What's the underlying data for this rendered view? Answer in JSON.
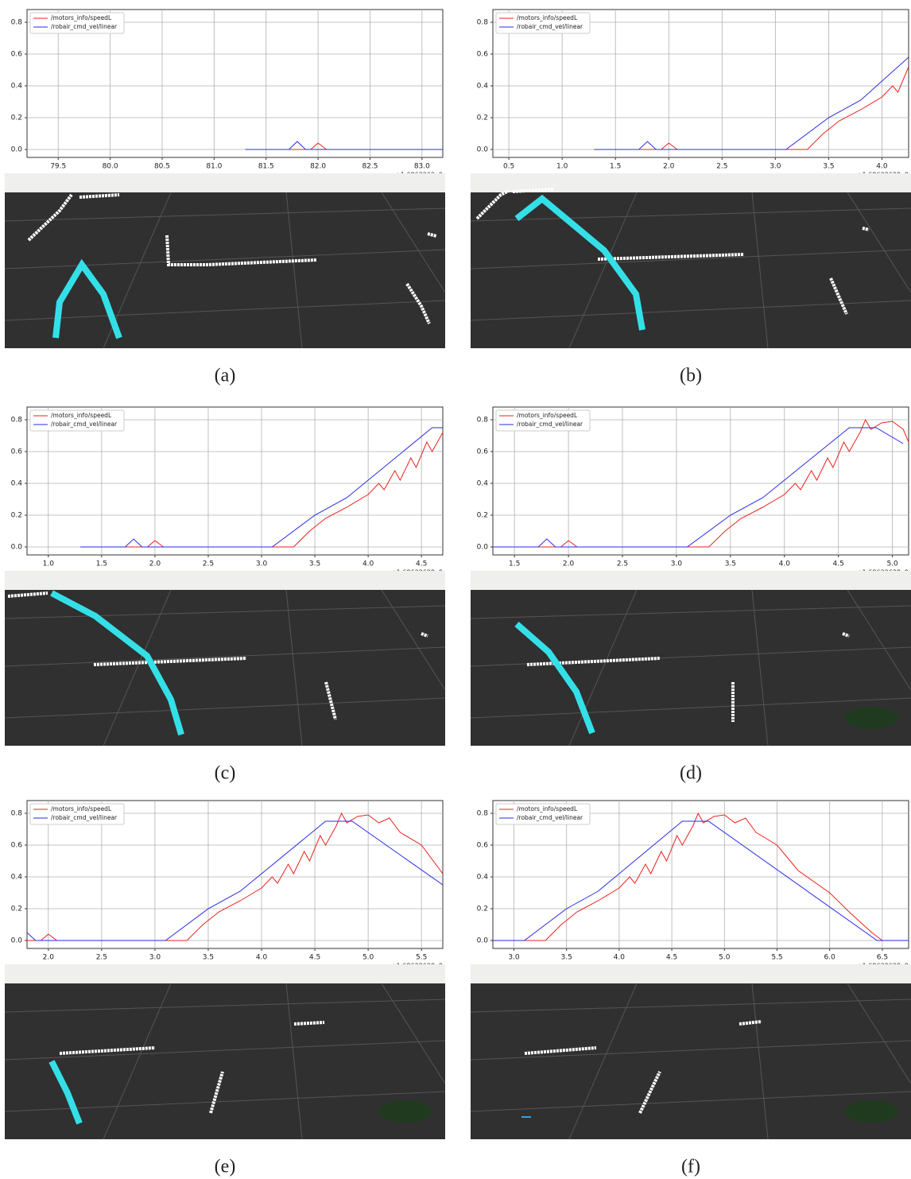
{
  "chart_data": [
    {
      "type": "line",
      "caption": "(a)",
      "x_offset_label": "+1.6863262e9",
      "grid": true,
      "legend": "upper left",
      "xlim": [
        79.2,
        83.2
      ],
      "xticks": [
        79.5,
        {
          "value": 80,
          "label": "80.0"
        },
        80.5,
        {
          "value": 81,
          "label": "81.0"
        },
        81.5,
        {
          "value": 82,
          "label": "82.0"
        },
        82.5,
        {
          "value": 83,
          "label": "83.0"
        }
      ],
      "ylim": [
        -0.05,
        0.88
      ],
      "yticks": [
        {
          "value": 0,
          "label": "0.0"
        },
        0.2,
        0.4,
        0.6,
        0.8
      ],
      "series": [
        {
          "name": "/motors_info/speedL",
          "color": "#e8231f",
          "x": [
            81.3,
            81.93,
            82.0,
            82.08,
            83.2
          ],
          "values": [
            0,
            0,
            0.04,
            0,
            0
          ]
        },
        {
          "name": "/robair_cmd_vel/linear",
          "color": "#2a2ae8",
          "x": [
            81.3,
            81.72,
            81.8,
            81.88,
            83.2
          ],
          "values": [
            0,
            0,
            0.05,
            0,
            0
          ]
        }
      ]
    },
    {
      "type": "line",
      "caption": "(b)",
      "x_offset_label": "+1.68632628e9",
      "grid": true,
      "legend": "upper left",
      "xlim": [
        0.35,
        4.25
      ],
      "xticks": [
        0.5,
        {
          "value": 1,
          "label": "1.0"
        },
        1.5,
        {
          "value": 2,
          "label": "2.0"
        },
        2.5,
        {
          "value": 3,
          "label": "3.0"
        },
        3.5,
        {
          "value": 4,
          "label": "4.0"
        }
      ],
      "ylim": [
        -0.05,
        0.88
      ],
      "yticks": [
        {
          "value": 0,
          "label": "0.0"
        },
        0.2,
        0.4,
        0.6,
        0.8
      ],
      "series": [
        {
          "name": "/motors_info/speedL",
          "color": "#e8231f",
          "x": [
            1.3,
            1.93,
            2.0,
            2.08,
            3.3,
            3.45,
            3.6,
            3.8,
            4.0,
            4.1,
            4.15,
            4.25
          ],
          "values": [
            0,
            0,
            0.04,
            0,
            0,
            0.1,
            0.18,
            0.25,
            0.33,
            0.4,
            0.36,
            0.52
          ]
        },
        {
          "name": "/robair_cmd_vel/linear",
          "color": "#2a2ae8",
          "x": [
            1.3,
            1.72,
            1.8,
            1.88,
            3.1,
            3.5,
            3.8,
            4.25
          ],
          "values": [
            0,
            0,
            0.05,
            0,
            0,
            0.2,
            0.31,
            0.58
          ]
        }
      ]
    },
    {
      "type": "line",
      "caption": "(c)",
      "x_offset_label": "+1.68632628e9",
      "grid": true,
      "legend": "upper left",
      "xlim": [
        0.8,
        4.7
      ],
      "xticks": [
        {
          "value": 1,
          "label": "1.0"
        },
        1.5,
        {
          "value": 2,
          "label": "2.0"
        },
        2.5,
        {
          "value": 3,
          "label": "3.0"
        },
        3.5,
        {
          "value": 4,
          "label": "4.0"
        },
        4.5
      ],
      "ylim": [
        -0.05,
        0.88
      ],
      "yticks": [
        {
          "value": 0,
          "label": "0.0"
        },
        0.2,
        0.4,
        0.6,
        0.8
      ],
      "series": [
        {
          "name": "/motors_info/speedL",
          "color": "#e8231f",
          "x": [
            1.3,
            1.93,
            2.0,
            2.08,
            3.3,
            3.45,
            3.6,
            3.8,
            4.0,
            4.1,
            4.15,
            4.25,
            4.3,
            4.4,
            4.45,
            4.55,
            4.6,
            4.7
          ],
          "values": [
            0,
            0,
            0.04,
            0,
            0,
            0.1,
            0.18,
            0.25,
            0.33,
            0.4,
            0.36,
            0.48,
            0.42,
            0.56,
            0.5,
            0.66,
            0.6,
            0.72
          ]
        },
        {
          "name": "/robair_cmd_vel/linear",
          "color": "#2a2ae8",
          "x": [
            1.3,
            1.72,
            1.8,
            1.88,
            3.1,
            3.5,
            3.8,
            4.6,
            4.7
          ],
          "values": [
            0,
            0,
            0.05,
            0,
            0,
            0.2,
            0.31,
            0.75,
            0.75
          ]
        }
      ]
    },
    {
      "type": "line",
      "caption": "(d)",
      "x_offset_label": "+1.68632628e9",
      "grid": true,
      "legend": "upper left",
      "xlim": [
        1.3,
        5.15
      ],
      "xticks": [
        1.5,
        {
          "value": 2,
          "label": "2.0"
        },
        2.5,
        {
          "value": 3,
          "label": "3.0"
        },
        3.5,
        {
          "value": 4,
          "label": "4.0"
        },
        4.5,
        {
          "value": 5,
          "label": "5.0"
        }
      ],
      "ylim": [
        -0.05,
        0.88
      ],
      "yticks": [
        {
          "value": 0,
          "label": "0.0"
        },
        0.2,
        0.4,
        0.6,
        0.8
      ],
      "series": [
        {
          "name": "/motors_info/speedL",
          "color": "#e8231f",
          "x": [
            1.3,
            1.93,
            2.0,
            2.08,
            3.3,
            3.45,
            3.6,
            3.8,
            4.0,
            4.1,
            4.15,
            4.25,
            4.3,
            4.4,
            4.45,
            4.55,
            4.6,
            4.7,
            4.75,
            4.8,
            4.9,
            5.0,
            5.1,
            5.15
          ],
          "values": [
            0,
            0,
            0.04,
            0,
            0,
            0.1,
            0.18,
            0.25,
            0.33,
            0.4,
            0.36,
            0.48,
            0.42,
            0.56,
            0.5,
            0.66,
            0.6,
            0.72,
            0.8,
            0.74,
            0.78,
            0.79,
            0.74,
            0.66
          ]
        },
        {
          "name": "/robair_cmd_vel/linear",
          "color": "#2a2ae8",
          "x": [
            1.3,
            1.72,
            1.8,
            1.88,
            3.1,
            3.5,
            3.8,
            4.6,
            4.85,
            5.1
          ],
          "values": [
            0,
            0,
            0.05,
            0,
            0,
            0.2,
            0.31,
            0.75,
            0.75,
            0.65
          ]
        }
      ]
    },
    {
      "type": "line",
      "caption": "(e)",
      "x_offset_label": "+1.68632628e9",
      "grid": true,
      "legend": "upper left",
      "xlim": [
        1.8,
        5.7
      ],
      "xticks": [
        {
          "value": 2,
          "label": "2.0"
        },
        2.5,
        {
          "value": 3,
          "label": "3.0"
        },
        3.5,
        {
          "value": 4,
          "label": "4.0"
        },
        4.5,
        {
          "value": 5,
          "label": "5.0"
        },
        5.5
      ],
      "ylim": [
        -0.05,
        0.88
      ],
      "yticks": [
        {
          "value": 0,
          "label": "0.0"
        },
        0.2,
        0.4,
        0.6,
        0.8
      ],
      "series": [
        {
          "name": "/motors_info/speedL",
          "color": "#e8231f",
          "x": [
            1.8,
            1.93,
            2.0,
            2.08,
            3.3,
            3.45,
            3.6,
            3.8,
            4.0,
            4.1,
            4.15,
            4.25,
            4.3,
            4.4,
            4.45,
            4.55,
            4.6,
            4.7,
            4.75,
            4.8,
            4.9,
            5.0,
            5.1,
            5.2,
            5.3,
            5.5,
            5.7
          ],
          "values": [
            0,
            0,
            0.04,
            0,
            0,
            0.1,
            0.18,
            0.25,
            0.33,
            0.4,
            0.36,
            0.48,
            0.42,
            0.56,
            0.5,
            0.66,
            0.6,
            0.72,
            0.8,
            0.74,
            0.78,
            0.79,
            0.74,
            0.77,
            0.68,
            0.6,
            0.42
          ]
        },
        {
          "name": "/robair_cmd_vel/linear",
          "color": "#2a2ae8",
          "x": [
            1.8,
            1.88,
            3.1,
            3.5,
            3.8,
            4.6,
            4.85,
            5.7
          ],
          "values": [
            0.05,
            0,
            0,
            0.2,
            0.31,
            0.75,
            0.75,
            0.35
          ]
        }
      ]
    },
    {
      "type": "line",
      "caption": "(f)",
      "x_offset_label": "+1.68632628e9",
      "grid": true,
      "legend": "upper left",
      "xlim": [
        2.8,
        6.75
      ],
      "xticks": [
        {
          "value": 3,
          "label": "3.0"
        },
        3.5,
        {
          "value": 4,
          "label": "4.0"
        },
        4.5,
        {
          "value": 5,
          "label": "5.0"
        },
        5.5,
        {
          "value": 6,
          "label": "6.0"
        },
        6.5
      ],
      "ylim": [
        -0.05,
        0.88
      ],
      "yticks": [
        {
          "value": 0,
          "label": "0.0"
        },
        0.2,
        0.4,
        0.6,
        0.8
      ],
      "series": [
        {
          "name": "/motors_info/speedL",
          "color": "#e8231f",
          "x": [
            2.8,
            3.3,
            3.45,
            3.6,
            3.8,
            4.0,
            4.1,
            4.15,
            4.25,
            4.3,
            4.4,
            4.45,
            4.55,
            4.6,
            4.7,
            4.75,
            4.8,
            4.9,
            5.0,
            5.1,
            5.2,
            5.3,
            5.5,
            5.7,
            6.0,
            6.2,
            6.4,
            6.5,
            6.75
          ],
          "values": [
            0,
            0,
            0.1,
            0.18,
            0.25,
            0.33,
            0.4,
            0.36,
            0.48,
            0.42,
            0.56,
            0.5,
            0.66,
            0.6,
            0.72,
            0.8,
            0.74,
            0.78,
            0.79,
            0.74,
            0.77,
            0.68,
            0.6,
            0.44,
            0.3,
            0.17,
            0.05,
            0,
            0
          ]
        },
        {
          "name": "/robair_cmd_vel/linear",
          "color": "#2a2ae8",
          "x": [
            2.8,
            3.1,
            3.5,
            3.8,
            4.6,
            4.85,
            6.45,
            6.75
          ],
          "values": [
            0,
            0,
            0.2,
            0.31,
            0.75,
            0.75,
            0,
            0
          ]
        }
      ]
    }
  ]
}
